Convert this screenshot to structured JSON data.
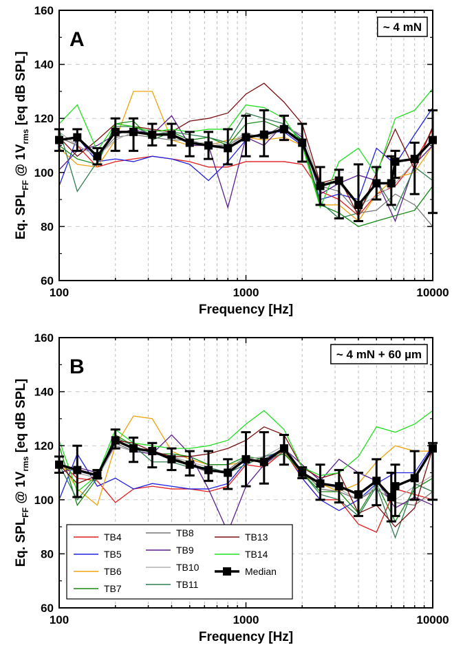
{
  "chart_data": [
    {
      "type": "line",
      "panel_label": "A",
      "annotation": "~ 4 mN",
      "xlabel": "Frequency [Hz]",
      "ylabel": "Eq. SPL_FF @ 1V_rms [eq dB SPL]",
      "x_scale": "log",
      "xlim": [
        100,
        10000
      ],
      "ylim": [
        60,
        160
      ],
      "x_ticks": [
        "100",
        "1000",
        "10000"
      ],
      "y_ticks": [
        "60",
        "80",
        "100",
        "120",
        "140",
        "160"
      ],
      "grid": true,
      "x": [
        100,
        125,
        160,
        200,
        250,
        315,
        400,
        500,
        630,
        800,
        1000,
        1250,
        1600,
        2000,
        2500,
        3150,
        4000,
        5000,
        6300,
        8000,
        10000
      ],
      "series": [
        {
          "name": "TB4",
          "color": "#e41a1c",
          "values": [
            113,
            110,
            102,
            104,
            105,
            106,
            105,
            104,
            102,
            102,
            104,
            104,
            104,
            103,
            93,
            90,
            84,
            92,
            95,
            104,
            116
          ]
        },
        {
          "name": "TB5",
          "color": "#1f1fe0",
          "values": [
            95,
            113,
            104,
            105,
            104,
            106,
            105,
            103,
            97,
            104,
            112,
            115,
            115,
            110,
            90,
            92,
            90,
            109,
            103,
            114,
            124
          ]
        },
        {
          "name": "TB6",
          "color": "#f0a30a",
          "values": [
            109,
            103,
            102,
            112,
            130,
            130,
            112,
            110,
            110,
            112,
            113,
            112,
            113,
            110,
            88,
            88,
            82,
            92,
            98,
            100,
            110
          ]
        },
        {
          "name": "TB7",
          "color": "#138a13",
          "values": [
            110,
            105,
            103,
            118,
            119,
            112,
            115,
            112,
            113,
            110,
            118,
            119,
            116,
            112,
            88,
            85,
            80,
            82,
            84,
            86,
            95
          ]
        },
        {
          "name": "TB8",
          "color": "#777777",
          "values": [
            113,
            110,
            106,
            113,
            114,
            113,
            112,
            112,
            110,
            110,
            114,
            113,
            118,
            112,
            95,
            93,
            85,
            86,
            92,
            88,
            80
          ]
        },
        {
          "name": "TB9",
          "color": "#5b1d8c",
          "values": [
            101,
            108,
            110,
            114,
            116,
            114,
            121,
            110,
            110,
            87,
            113,
            110,
            118,
            113,
            92,
            96,
            99,
            97,
            82,
            103,
            110
          ]
        },
        {
          "name": "TB10",
          "color": "#b0b0b0",
          "values": [
            115,
            110,
            106,
            112,
            115,
            116,
            114,
            111,
            111,
            110,
            115,
            112,
            117,
            114,
            96,
            96,
            88,
            91,
            96,
            104,
            112
          ]
        },
        {
          "name": "TB11",
          "color": "#2e7d4f",
          "values": [
            116,
            93,
            104,
            117,
            117,
            114,
            115,
            114,
            113,
            111,
            122,
            120,
            118,
            112,
            89,
            83,
            85,
            97,
            86,
            102,
            97
          ]
        },
        {
          "name": "TB13",
          "color": "#7b0d0d",
          "values": [
            113,
            106,
            112,
            118,
            117,
            116,
            115,
            119,
            120,
            122,
            129,
            133,
            126,
            118,
            96,
            98,
            84,
            100,
            116,
            101,
            117
          ]
        },
        {
          "name": "TB14",
          "color": "#20e020",
          "values": [
            118,
            125,
            108,
            118,
            117,
            115,
            116,
            115,
            116,
            116,
            125,
            124,
            120,
            110,
            87,
            104,
            109,
            99,
            120,
            123,
            131
          ]
        }
      ],
      "median": {
        "name": "Median",
        "color": "#000000",
        "values": [
          112,
          113,
          106,
          115,
          115,
          114,
          114,
          111,
          110,
          109,
          113,
          114,
          116,
          111,
          95,
          97,
          88,
          96,
          96,
          104,
          105,
          112
        ],
        "x": [
          100,
          125,
          160,
          200,
          250,
          315,
          400,
          500,
          630,
          800,
          1000,
          1250,
          1600,
          2000,
          2500,
          3150,
          4000,
          5000,
          6000,
          6300,
          8000,
          10000
        ],
        "err_low": [
          108,
          108,
          103,
          108,
          108,
          110,
          110,
          106,
          105,
          103,
          106,
          106,
          112,
          104,
          88,
          83,
          82,
          90,
          88,
          98,
          92,
          85
        ],
        "err_high": [
          116,
          116,
          109,
          120,
          120,
          118,
          118,
          115,
          115,
          116,
          121,
          123,
          121,
          118,
          102,
          101,
          103,
          102,
          106,
          108,
          111,
          123
        ]
      }
    },
    {
      "type": "line",
      "panel_label": "B",
      "annotation": "~ 4 mN + 60 µm",
      "xlabel": "Frequency [Hz]",
      "ylabel": "Eq. SPL_FF @ 1V_rms [eq dB SPL]",
      "x_scale": "log",
      "xlim": [
        100,
        10000
      ],
      "ylim": [
        60,
        160
      ],
      "x_ticks": [
        "100",
        "1000",
        "10000"
      ],
      "y_ticks": [
        "60",
        "80",
        "100",
        "120",
        "140",
        "160"
      ],
      "grid": true,
      "legend": "bottom-left",
      "x": [
        100,
        125,
        160,
        200,
        250,
        315,
        400,
        500,
        630,
        800,
        1000,
        1250,
        1600,
        2000,
        2500,
        3150,
        4000,
        5000,
        6300,
        8000,
        10000
      ],
      "series": [
        {
          "name": "TB4",
          "color": "#e41a1c",
          "values": [
            114,
            108,
            107,
            99,
            104,
            105,
            104,
            104,
            103,
            105,
            113,
            112,
            118,
            108,
            100,
            100,
            91,
            88,
            104,
            102,
            100
          ]
        },
        {
          "name": "TB5",
          "color": "#1f1fe0",
          "values": [
            100,
            117,
            105,
            108,
            104,
            106,
            105,
            104,
            104,
            106,
            114,
            115,
            119,
            108,
            100,
            96,
            100,
            106,
            110,
            110,
            120
          ]
        },
        {
          "name": "TB6",
          "color": "#f0a30a",
          "values": [
            115,
            104,
            98,
            120,
            131,
            130,
            118,
            115,
            113,
            113,
            114,
            115,
            118,
            109,
            106,
            103,
            106,
            114,
            120,
            118,
            118
          ]
        },
        {
          "name": "TB7",
          "color": "#138a13",
          "values": [
            120,
            98,
            108,
            124,
            120,
            117,
            117,
            116,
            113,
            113,
            116,
            115,
            117,
            110,
            103,
            103,
            95,
            106,
            92,
            104,
            108
          ]
        },
        {
          "name": "TB8",
          "color": "#777777",
          "values": [
            113,
            110,
            108,
            121,
            118,
            117,
            116,
            113,
            110,
            111,
            116,
            113,
            118,
            111,
            104,
            103,
            100,
            104,
            99,
            98,
            103
          ]
        },
        {
          "name": "TB9",
          "color": "#5b1d8c",
          "values": [
            110,
            112,
            110,
            120,
            118,
            117,
            124,
            117,
            104,
            88,
            105,
            113,
            119,
            113,
            107,
            115,
            110,
            107,
            97,
            101,
            98
          ]
        },
        {
          "name": "TB10",
          "color": "#b0b0b0",
          "values": [
            113,
            110,
            108,
            120,
            118,
            118,
            116,
            114,
            112,
            110,
            115,
            116,
            120,
            110,
            106,
            104,
            100,
            105,
            100,
            105,
            109
          ]
        },
        {
          "name": "TB11",
          "color": "#2e7d4f",
          "values": [
            113,
            100,
            109,
            123,
            120,
            114,
            114,
            112,
            112,
            110,
            113,
            116,
            118,
            110,
            102,
            100,
            94,
            105,
            86,
            106,
            103
          ]
        },
        {
          "name": "TB13",
          "color": "#7b0d0d",
          "values": [
            113,
            106,
            109,
            122,
            121,
            118,
            116,
            116,
            117,
            119,
            122,
            127,
            124,
            112,
            108,
            110,
            95,
            98,
            90,
            97,
            119
          ]
        },
        {
          "name": "TB14",
          "color": "#20e020",
          "values": [
            122,
            103,
            109,
            126,
            121,
            120,
            119,
            119,
            120,
            122,
            128,
            133,
            126,
            112,
            109,
            110,
            116,
            127,
            125,
            128,
            133
          ]
        }
      ],
      "median": {
        "name": "Median",
        "color": "#000000",
        "values": [
          113,
          111,
          109,
          122,
          119,
          118,
          115,
          113,
          111,
          110,
          115,
          114,
          119,
          110,
          106,
          105,
          102,
          107,
          101,
          105,
          108,
          119
        ],
        "x": [
          100,
          125,
          160,
          200,
          250,
          315,
          400,
          500,
          630,
          800,
          1000,
          1250,
          1600,
          2000,
          2500,
          3150,
          4000,
          5000,
          6000,
          6300,
          8000,
          10000
        ],
        "err_low": [
          110,
          101,
          108,
          119,
          114,
          112,
          111,
          109,
          107,
          104,
          105,
          106,
          113,
          108,
          100,
          99,
          94,
          98,
          92,
          94,
          100,
          100
        ],
        "err_high": [
          116,
          120,
          111,
          126,
          123,
          121,
          119,
          118,
          118,
          115,
          125,
          125,
          124,
          112,
          113,
          111,
          110,
          115,
          110,
          113,
          118,
          121
        ]
      }
    }
  ],
  "legend": {
    "entries": [
      "TB4",
      "TB5",
      "TB6",
      "TB7",
      "TB8",
      "TB9",
      "TB10",
      "TB11",
      "TB13",
      "TB14",
      "Median"
    ]
  }
}
